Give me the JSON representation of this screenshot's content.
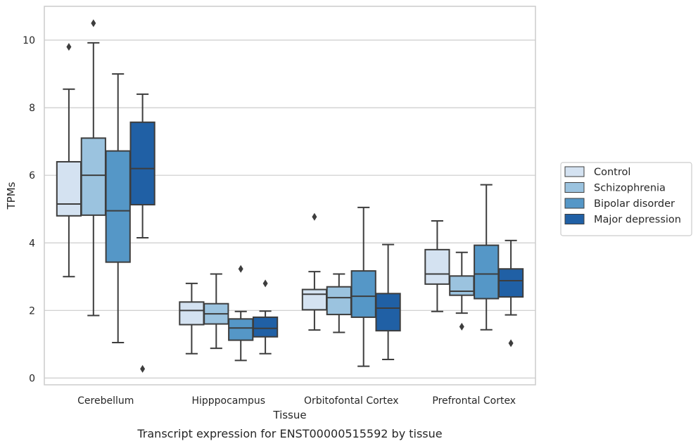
{
  "chart_data": {
    "type": "box",
    "xlabel": "Tissue",
    "ylabel": "TPMs",
    "caption": "Transcript expression for ENST00000515592 by tissue",
    "ylim": [
      -0.2,
      11.0
    ],
    "yticks": [
      "0",
      "2",
      "4",
      "6",
      "8",
      "10"
    ],
    "grid": true,
    "legend_position": "right",
    "categories": [
      "Cerebellum",
      "Hipppocampus",
      "Orbitofontal Cortex",
      "Prefrontal Cortex"
    ],
    "series": [
      {
        "name": "Control",
        "color": "#d4e2f1",
        "boxes": [
          {
            "whislo": 3.0,
            "q1": 4.8,
            "med": 5.15,
            "q3": 6.4,
            "whishi": 8.55,
            "fliers": [
              9.8
            ]
          },
          {
            "whislo": 0.72,
            "q1": 1.58,
            "med": 2.0,
            "q3": 2.25,
            "whishi": 2.8,
            "fliers": []
          },
          {
            "whislo": 1.42,
            "q1": 2.02,
            "med": 2.48,
            "q3": 2.62,
            "whishi": 3.15,
            "fliers": [
              4.77
            ]
          },
          {
            "whislo": 1.97,
            "q1": 2.78,
            "med": 3.08,
            "q3": 3.8,
            "whishi": 4.65,
            "fliers": []
          }
        ]
      },
      {
        "name": "Schizophrenia",
        "color": "#9bc3df",
        "boxes": [
          {
            "whislo": 1.85,
            "q1": 4.82,
            "med": 6.0,
            "q3": 7.1,
            "whishi": 9.92,
            "fliers": [
              10.5
            ]
          },
          {
            "whislo": 0.88,
            "q1": 1.6,
            "med": 1.9,
            "q3": 2.2,
            "whishi": 3.08,
            "fliers": []
          },
          {
            "whislo": 1.35,
            "q1": 1.88,
            "med": 2.38,
            "q3": 2.7,
            "whishi": 3.08,
            "fliers": []
          },
          {
            "whislo": 1.92,
            "q1": 2.45,
            "med": 2.57,
            "q3": 3.02,
            "whishi": 3.72,
            "fliers": [
              1.52
            ]
          }
        ]
      },
      {
        "name": "Bipolar disorder",
        "color": "#5597c7",
        "boxes": [
          {
            "whislo": 1.05,
            "q1": 3.43,
            "med": 4.95,
            "q3": 6.72,
            "whishi": 9.0,
            "fliers": []
          },
          {
            "whislo": 0.52,
            "q1": 1.12,
            "med": 1.48,
            "q3": 1.75,
            "whishi": 1.97,
            "fliers": [
              3.23
            ]
          },
          {
            "whislo": 0.35,
            "q1": 1.8,
            "med": 2.42,
            "q3": 3.17,
            "whishi": 5.05,
            "fliers": []
          },
          {
            "whislo": 1.43,
            "q1": 2.35,
            "med": 3.08,
            "q3": 3.93,
            "whishi": 5.72,
            "fliers": []
          }
        ]
      },
      {
        "name": "Major depression",
        "color": "#2060a5",
        "boxes": [
          {
            "whislo": 4.15,
            "q1": 5.13,
            "med": 6.2,
            "q3": 7.57,
            "whishi": 8.4,
            "fliers": [
              0.27
            ]
          },
          {
            "whislo": 0.72,
            "q1": 1.22,
            "med": 1.47,
            "q3": 1.8,
            "whishi": 1.98,
            "fliers": [
              2.8
            ]
          },
          {
            "whislo": 0.55,
            "q1": 1.4,
            "med": 2.07,
            "q3": 2.5,
            "whishi": 3.95,
            "fliers": []
          },
          {
            "whislo": 1.87,
            "q1": 2.4,
            "med": 2.88,
            "q3": 3.23,
            "whishi": 4.07,
            "fliers": [
              1.03
            ]
          }
        ]
      }
    ]
  }
}
